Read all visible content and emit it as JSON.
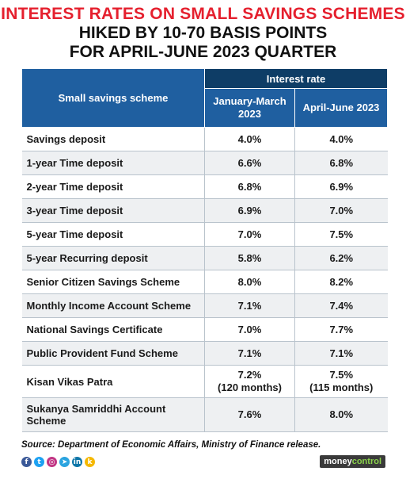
{
  "title": {
    "line1": "INTEREST RATES ON SMALL SAVINGS SCHEMES",
    "line2": "HIKED BY 10-70 BASIS POINTS",
    "line3": "FOR APRIL-JUNE 2023 QUARTER"
  },
  "table": {
    "scheme_header": "Small savings scheme",
    "rate_header": "Interest rate",
    "col1_header": "January-March 2023",
    "col2_header": "April-June 2023"
  },
  "chart_data": {
    "type": "table",
    "title": "INTEREST RATES ON SMALL SAVINGS SCHEMES HIKED BY 10-70 BASIS POINTS FOR APRIL-JUNE 2023 QUARTER",
    "columns": [
      "Small savings scheme",
      "January-March 2023",
      "April-June 2023"
    ],
    "rows": [
      {
        "scheme": "Savings deposit",
        "jan_mar": "4.0%",
        "apr_jun": "4.0%"
      },
      {
        "scheme": "1-year Time deposit",
        "jan_mar": "6.6%",
        "apr_jun": "6.8%"
      },
      {
        "scheme": "2-year Time deposit",
        "jan_mar": "6.8%",
        "apr_jun": "6.9%"
      },
      {
        "scheme": "3-year Time deposit",
        "jan_mar": "6.9%",
        "apr_jun": "7.0%"
      },
      {
        "scheme": "5-year Time deposit",
        "jan_mar": "7.0%",
        "apr_jun": "7.5%"
      },
      {
        "scheme": "5-year Recurring deposit",
        "jan_mar": "5.8%",
        "apr_jun": "6.2%"
      },
      {
        "scheme": "Senior Citizen Savings Scheme",
        "jan_mar": "8.0%",
        "apr_jun": "8.2%"
      },
      {
        "scheme": "Monthly Income Account Scheme",
        "jan_mar": "7.1%",
        "apr_jun": "7.4%"
      },
      {
        "scheme": "National Savings Certificate",
        "jan_mar": "7.0%",
        "apr_jun": "7.7%"
      },
      {
        "scheme": "Public Provident Fund Scheme",
        "jan_mar": "7.1%",
        "apr_jun": "7.1%"
      },
      {
        "scheme": "Kisan Vikas Patra",
        "jan_mar": "7.2%",
        "jan_mar_note": "(120 months)",
        "apr_jun": "7.5%",
        "apr_jun_note": "(115 months)"
      },
      {
        "scheme": "Sukanya Samriddhi Account Scheme",
        "jan_mar": "7.6%",
        "apr_jun": "8.0%"
      }
    ]
  },
  "footer": {
    "source": "Source: Department of Economic Affairs, Ministry of Finance release.",
    "brand_part1": "money",
    "brand_part2": "control",
    "social_icons": [
      {
        "name": "facebook-icon",
        "glyph": "f",
        "color": "#3b5998"
      },
      {
        "name": "twitter-icon",
        "glyph": "t",
        "color": "#1da1f2"
      },
      {
        "name": "instagram-icon",
        "glyph": "◎",
        "color": "#c13584"
      },
      {
        "name": "telegram-icon",
        "glyph": "➤",
        "color": "#2aa3df"
      },
      {
        "name": "linkedin-icon",
        "glyph": "in",
        "color": "#0e76a8"
      },
      {
        "name": "koo-icon",
        "glyph": "k",
        "color": "#f5b800"
      }
    ]
  }
}
